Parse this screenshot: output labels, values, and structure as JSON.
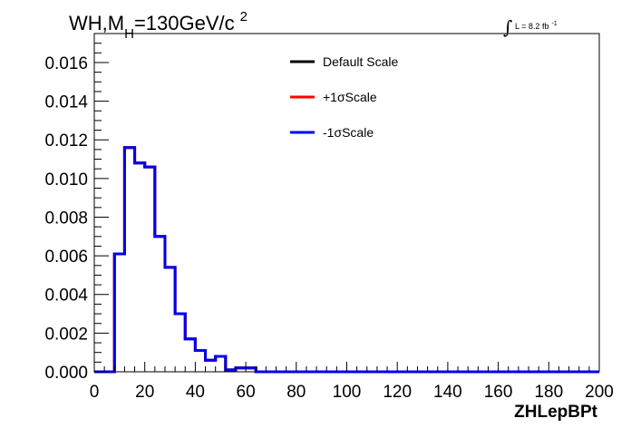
{
  "chart_data": {
    "type": "line",
    "title": {
      "main": "WH,M",
      "subscript": "H",
      "value": "=130GeV/c",
      "superscript": "2"
    },
    "lumi": {
      "integral_symbol": "∫",
      "text": "L = 8.2 fb",
      "superscript": "-1"
    },
    "xlabel": "ZHLepBPt",
    "ylabel": "",
    "xlim": [
      0,
      200
    ],
    "ylim": [
      0,
      0.0175
    ],
    "x_ticks": [
      0,
      20,
      40,
      60,
      80,
      100,
      120,
      140,
      160,
      180,
      200
    ],
    "x_tick_labels": [
      "0",
      "20",
      "40",
      "60",
      "80",
      "100",
      "120",
      "140",
      "160",
      "180",
      "200"
    ],
    "y_ticks": [
      0,
      0.002,
      0.004,
      0.006,
      0.008,
      0.01,
      0.012,
      0.014,
      0.016
    ],
    "y_tick_labels": [
      "0.000",
      "0.002",
      "0.004",
      "0.006",
      "0.008",
      "0.010",
      "0.012",
      "0.014",
      "0.016"
    ],
    "grid": false,
    "legend_position": "top-center",
    "bin_edges": [
      0,
      4,
      8,
      12,
      16,
      20,
      24,
      28,
      32,
      36,
      40,
      44,
      48,
      52,
      56,
      60,
      64,
      68,
      200
    ],
    "series": [
      {
        "name": "Default Scale",
        "color": "#000000",
        "values": [
          0,
          0,
          0.0061,
          0.0116,
          0.0108,
          0.0106,
          0.007,
          0.0054,
          0.003,
          0.0017,
          0.0011,
          0.0006,
          0.0008,
          0.0001,
          0.0002,
          0.0002,
          0,
          0
        ]
      },
      {
        "name": "+1σScale",
        "color": "#ff0000",
        "values": [
          0,
          0,
          0.0061,
          0.0116,
          0.0108,
          0.0106,
          0.007,
          0.0054,
          0.003,
          0.0017,
          0.0011,
          0.0006,
          0.0008,
          0.0001,
          0.0002,
          0.0002,
          0,
          0
        ]
      },
      {
        "name": "-1σScale",
        "color": "#0000ee",
        "values": [
          0,
          0,
          0.0061,
          0.0116,
          0.0108,
          0.0106,
          0.007,
          0.0054,
          0.003,
          0.0017,
          0.0011,
          0.0006,
          0.0008,
          0.0001,
          0.0002,
          0.0002,
          0,
          0
        ]
      }
    ]
  }
}
